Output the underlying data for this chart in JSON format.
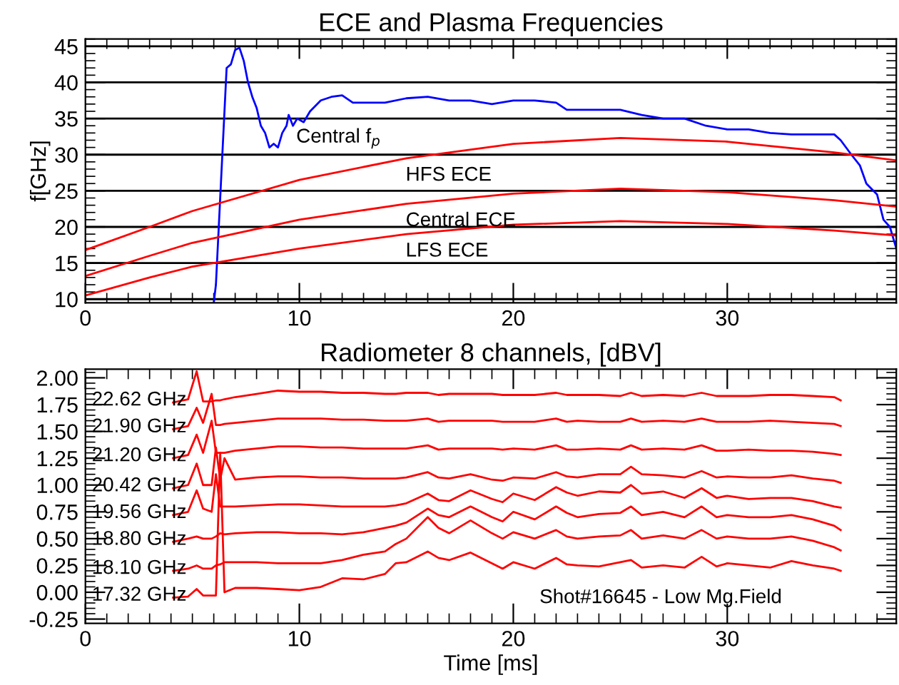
{
  "chart_data": [
    {
      "type": "line",
      "title": "ECE and Plasma Frequencies",
      "ylabel": "f[GHz]",
      "xlim": [
        0,
        37.9
      ],
      "ylim": [
        9.5,
        46
      ],
      "xticks": [
        0,
        10,
        20,
        30
      ],
      "yticks": [
        10,
        15,
        20,
        25,
        30,
        35,
        40,
        45
      ],
      "grid": "y",
      "legend": false,
      "marker": "none",
      "line_style": "solid",
      "series": [
        {
          "color": "#0000ff",
          "x": [
            6.0,
            6.1,
            6.4,
            6.6,
            6.8,
            7.0,
            7.2,
            7.4,
            7.6,
            7.8,
            8.0,
            8.2,
            8.4,
            8.6,
            8.8,
            9.0,
            9.2,
            9.4,
            9.5,
            9.7,
            9.9,
            10.2,
            10.5,
            11,
            11.5,
            12,
            12.5,
            14,
            15,
            16,
            17,
            18,
            19,
            20,
            21,
            22,
            22.5,
            25,
            26,
            27,
            28,
            29,
            30,
            31,
            32,
            33,
            34,
            35,
            35.3,
            35.8,
            36.2,
            36.5,
            37,
            37.3,
            37.6,
            37.9
          ],
          "values": [
            9.5,
            12,
            30,
            42,
            42.5,
            44.5,
            44.8,
            43,
            40,
            38,
            36.5,
            34,
            33,
            31,
            31.5,
            31,
            33,
            34,
            35.5,
            34,
            35,
            34.5,
            36,
            37.5,
            38,
            38.2,
            37.2,
            37.2,
            37.8,
            38,
            37.5,
            37.5,
            37,
            37.5,
            37.5,
            37.2,
            36.2,
            36.2,
            35.5,
            35,
            35,
            34,
            33.5,
            33.5,
            33,
            32.8,
            32.8,
            32.8,
            32,
            30,
            28.5,
            26,
            24.5,
            21,
            20,
            17
          ]
        },
        {
          "color": "#ff0000",
          "x": [
            0,
            3,
            5,
            10,
            15,
            20,
            25,
            30,
            35,
            37.9
          ],
          "values": [
            16.8,
            20,
            22.2,
            26.5,
            29.5,
            31.5,
            32.3,
            31.8,
            30.3,
            29.2
          ]
        },
        {
          "color": "#ff0000",
          "x": [
            0,
            3,
            5,
            10,
            15,
            20,
            25,
            30,
            35,
            37.9
          ],
          "values": [
            13.2,
            16,
            17.8,
            21,
            23.2,
            24.6,
            25.3,
            24.8,
            23.7,
            22.8
          ]
        },
        {
          "color": "#ff0000",
          "x": [
            0,
            3,
            5,
            10,
            15,
            20,
            25,
            30,
            35,
            37.9
          ],
          "values": [
            10.5,
            13,
            14.5,
            17,
            19,
            20.3,
            20.8,
            20.4,
            19.5,
            18.8
          ]
        }
      ],
      "annotations": [
        "Central f$_{p}$",
        "HFS ECE",
        "Central ECE",
        "LFS ECE"
      ]
    },
    {
      "type": "line",
      "title": "Radiometer 8 channels, [dBV]",
      "xlabel": "Time [ms]",
      "xlim": [
        0,
        37.9
      ],
      "ylim": [
        -0.29,
        2.08
      ],
      "xticks": [
        0,
        10,
        20,
        30
      ],
      "yticks": [
        {
          "value": -0.25,
          "label": "-0.25"
        },
        {
          "value": 0,
          "label": "0.00"
        },
        {
          "value": 0.25,
          "label": "0.25"
        },
        {
          "value": 0.5,
          "label": "0.50"
        },
        {
          "value": 0.75,
          "label": "0.75"
        },
        {
          "value": 1,
          "label": "1.00"
        },
        {
          "value": 1.25,
          "label": "1.25"
        },
        {
          "value": 1.5,
          "label": "1.50"
        },
        {
          "value": 1.75,
          "label": "1.75"
        },
        {
          "value": 2,
          "label": "2.00"
        }
      ],
      "grid": false,
      "legend": false,
      "marker": "none",
      "line_style": "solid",
      "x": [
        4.1,
        4.8,
        5.2,
        5.5,
        5.9,
        6.1,
        6.3,
        6.5,
        7,
        8,
        9,
        10,
        11,
        12,
        13,
        14,
        14.5,
        15,
        16,
        16.5,
        17,
        18,
        19,
        19.5,
        20,
        21,
        22,
        22.5,
        23,
        24,
        25,
        25.5,
        26,
        27,
        28,
        28.8,
        29.5,
        30,
        31,
        32,
        33,
        34,
        35,
        35.3
      ],
      "series": [
        {
          "name": "22.62 GHz",
          "color": "#ff0000",
          "values": [
            1.77,
            1.8,
            2.06,
            1.78,
            1.78,
            1.79,
            1.79,
            1.8,
            1.82,
            1.85,
            1.88,
            1.87,
            1.87,
            1.86,
            1.86,
            1.85,
            1.85,
            1.86,
            1.86,
            1.84,
            1.85,
            1.85,
            1.85,
            1.84,
            1.84,
            1.84,
            1.86,
            1.84,
            1.84,
            1.84,
            1.83,
            1.86,
            1.83,
            1.84,
            1.83,
            1.86,
            1.83,
            1.83,
            1.83,
            1.84,
            1.84,
            1.83,
            1.82,
            1.79
          ]
        },
        {
          "name": "21.90 GHz",
          "color": "#ff0000",
          "values": [
            1.52,
            1.55,
            1.72,
            1.58,
            1.85,
            1.56,
            1.56,
            1.57,
            1.58,
            1.6,
            1.62,
            1.62,
            1.62,
            1.61,
            1.61,
            1.6,
            1.6,
            1.6,
            1.62,
            1.59,
            1.6,
            1.6,
            1.6,
            1.59,
            1.59,
            1.59,
            1.62,
            1.59,
            1.6,
            1.59,
            1.59,
            1.62,
            1.59,
            1.6,
            1.59,
            1.62,
            1.59,
            1.59,
            1.59,
            1.6,
            1.59,
            1.58,
            1.57,
            1.55
          ]
        },
        {
          "name": "21.20 GHz",
          "color": "#ff0000",
          "values": [
            1.25,
            1.28,
            1.47,
            1.3,
            1.6,
            1.3,
            1.3,
            1.3,
            1.32,
            1.34,
            1.36,
            1.36,
            1.35,
            1.35,
            1.34,
            1.34,
            1.34,
            1.34,
            1.37,
            1.33,
            1.34,
            1.34,
            1.34,
            1.33,
            1.34,
            1.33,
            1.37,
            1.33,
            1.33,
            1.34,
            1.33,
            1.37,
            1.33,
            1.34,
            1.33,
            1.37,
            1.32,
            1.32,
            1.33,
            1.32,
            1.32,
            1.31,
            1.29,
            1.28
          ]
        },
        {
          "name": "20.42 GHz",
          "color": "#ff0000",
          "values": [
            0.97,
            1.0,
            1.2,
            1.0,
            1.0,
            1.35,
            1.05,
            1.25,
            1.05,
            1.07,
            1.08,
            1.08,
            1.07,
            1.07,
            1.06,
            1.06,
            1.06,
            1.07,
            1.12,
            1.07,
            1.06,
            1.1,
            1.05,
            1.04,
            1.07,
            1.06,
            1.12,
            1.08,
            1.07,
            1.1,
            1.1,
            1.17,
            1.1,
            1.09,
            1.07,
            1.13,
            1.07,
            1.08,
            1.07,
            1.07,
            1.09,
            1.06,
            1.04,
            1.02
          ]
        },
        {
          "name": "19.56 GHz",
          "color": "#ff0000",
          "values": [
            0.72,
            0.75,
            0.95,
            0.78,
            0.75,
            1.1,
            0.8,
            0.8,
            0.8,
            0.81,
            0.82,
            0.82,
            0.81,
            0.8,
            0.8,
            0.8,
            0.81,
            0.83,
            0.92,
            0.86,
            0.85,
            0.95,
            0.87,
            0.84,
            0.92,
            0.86,
            0.98,
            0.93,
            0.9,
            0.94,
            0.93,
            1.0,
            0.92,
            0.94,
            0.88,
            0.97,
            0.88,
            0.9,
            0.87,
            0.88,
            0.88,
            0.85,
            0.8,
            0.79
          ]
        },
        {
          "name": "18.80 GHz",
          "color": "#ff0000",
          "values": [
            0.47,
            0.5,
            0.52,
            0.5,
            0.5,
            0.52,
            0.55,
            0.54,
            0.55,
            0.56,
            0.56,
            0.55,
            0.55,
            0.54,
            0.56,
            0.6,
            0.62,
            0.65,
            0.78,
            0.72,
            0.7,
            0.8,
            0.7,
            0.66,
            0.75,
            0.68,
            0.8,
            0.74,
            0.7,
            0.73,
            0.74,
            0.8,
            0.72,
            0.75,
            0.7,
            0.8,
            0.7,
            0.72,
            0.7,
            0.7,
            0.72,
            0.68,
            0.62,
            0.58
          ]
        },
        {
          "name": "18.10 GHz",
          "color": "#ff0000",
          "values": [
            0.2,
            0.22,
            0.25,
            0.22,
            0.22,
            0.25,
            0.26,
            0.28,
            0.28,
            0.28,
            0.27,
            0.27,
            0.27,
            0.3,
            0.35,
            0.38,
            0.45,
            0.5,
            0.7,
            0.6,
            0.55,
            0.67,
            0.55,
            0.5,
            0.56,
            0.5,
            0.58,
            0.52,
            0.5,
            0.52,
            0.53,
            0.58,
            0.5,
            0.53,
            0.5,
            0.58,
            0.5,
            0.52,
            0.5,
            0.5,
            0.52,
            0.48,
            0.42,
            0.39
          ]
        },
        {
          "name": "17.32 GHz",
          "color": "#ff0000",
          "values": [
            -0.05,
            -0.04,
            0.03,
            -0.03,
            -0.03,
            -0.03,
            1.3,
            0.0,
            0.04,
            0.04,
            0.03,
            0.02,
            0.05,
            0.13,
            0.12,
            0.17,
            0.27,
            0.28,
            0.38,
            0.32,
            0.3,
            0.37,
            0.27,
            0.22,
            0.28,
            0.22,
            0.32,
            0.26,
            0.25,
            0.24,
            0.28,
            0.3,
            0.23,
            0.25,
            0.23,
            0.33,
            0.24,
            0.27,
            0.25,
            0.23,
            0.29,
            0.25,
            0.22,
            0.2
          ]
        }
      ],
      "annotations": [
        "Shot#16645 - Low Mg.Field"
      ]
    }
  ]
}
